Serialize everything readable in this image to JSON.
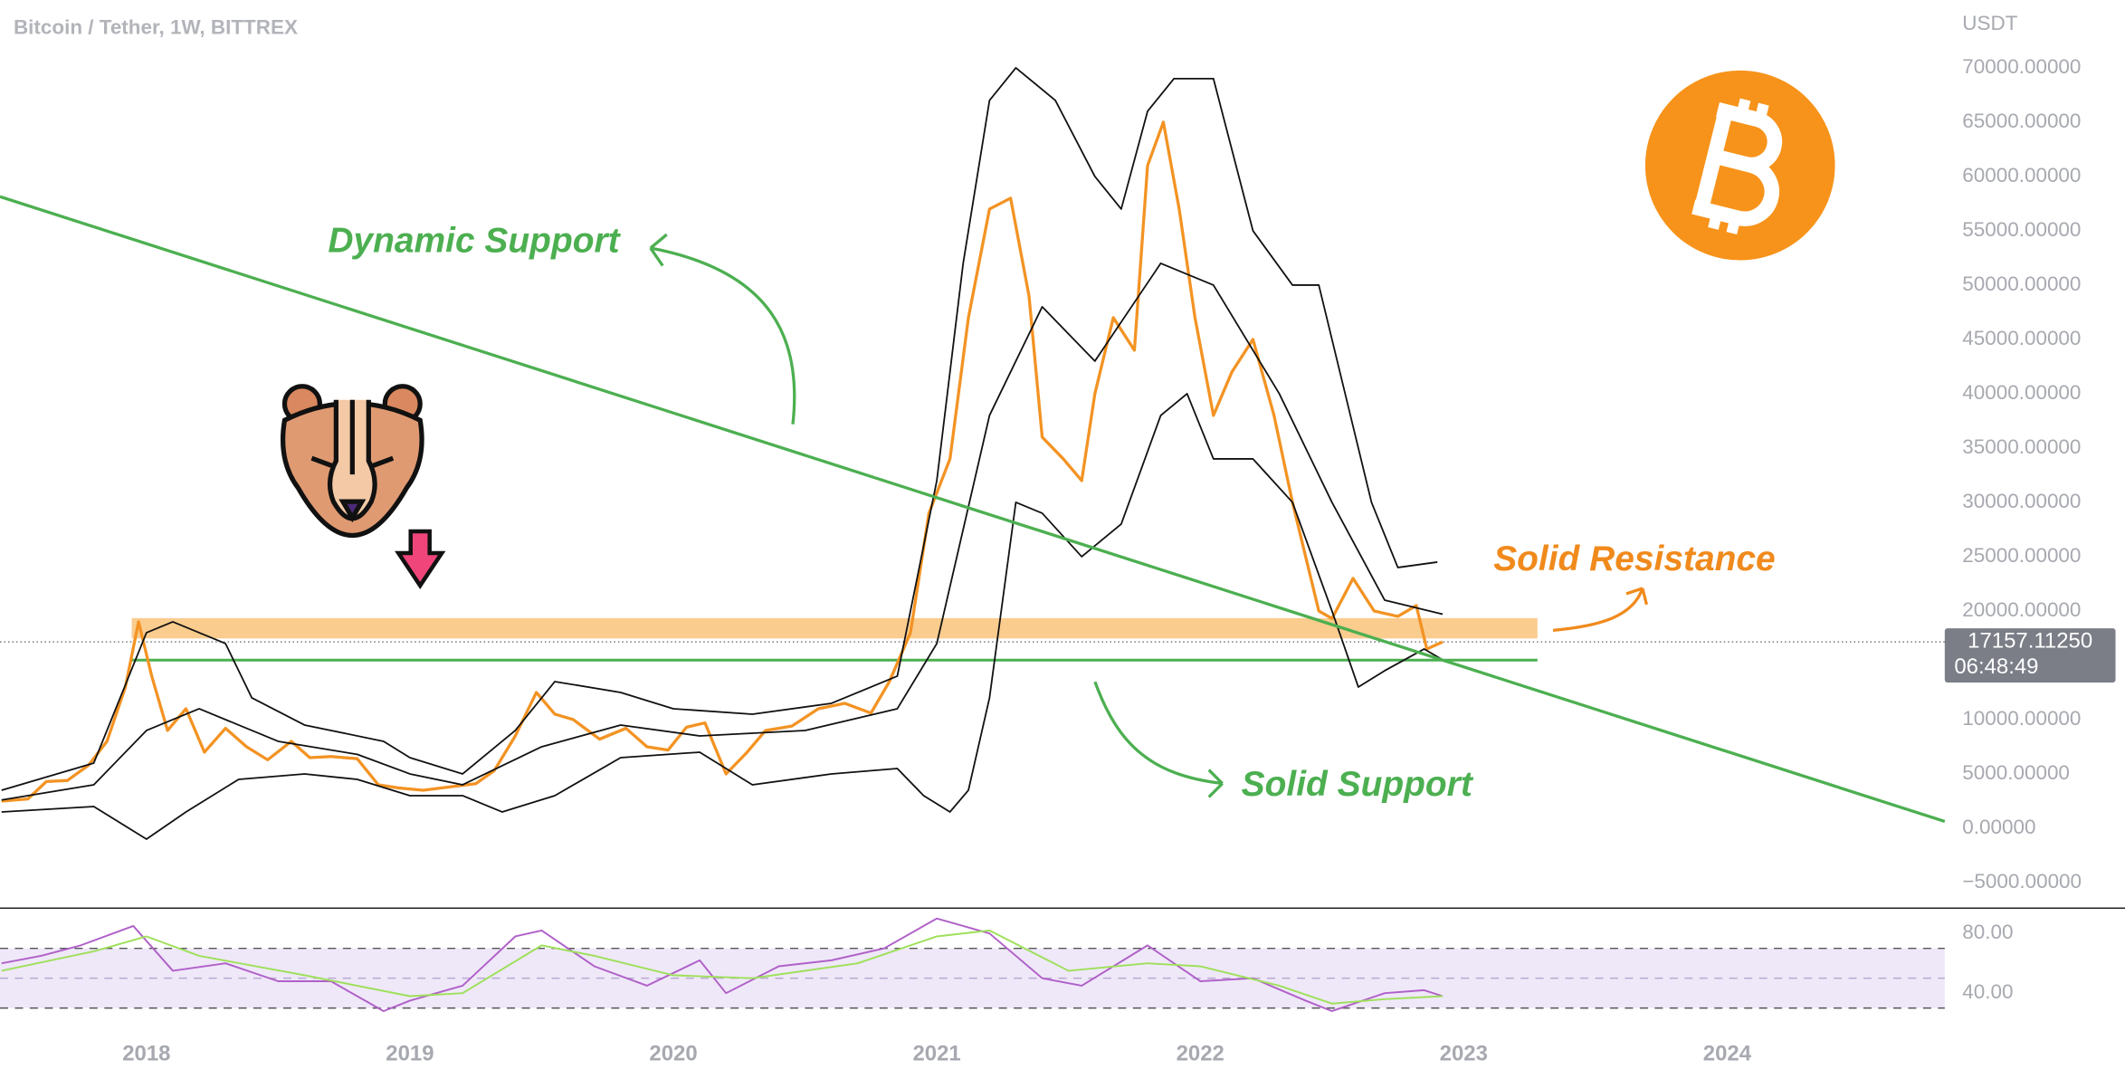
{
  "chart_data": [
    {
      "type": "line",
      "title": "Bitcoin / Tether, 1W, BITTREX",
      "y_axis_label": "USDT",
      "xlim": [
        2017.444,
        2024.826
      ],
      "xticks": [
        2018,
        2019,
        2020,
        2021,
        2022,
        2023,
        2024
      ],
      "ylim": [
        -7360,
        76240
      ],
      "yticks": [
        {
          "value": -5000,
          "label": "−5000.00000"
        },
        {
          "value": 0,
          "label": "0.00000"
        },
        {
          "value": 5000,
          "label": "5000.00000"
        },
        {
          "value": 10000,
          "label": "10000.00000"
        },
        {
          "value": 15000,
          "label": "15000.00000"
        },
        {
          "value": 20000,
          "label": "20000.00000"
        },
        {
          "value": 25000,
          "label": "25000.00000"
        },
        {
          "value": 30000,
          "label": "30000.00000"
        },
        {
          "value": 35000,
          "label": "35000.00000"
        },
        {
          "value": 40000,
          "label": "40000.00000"
        },
        {
          "value": 45000,
          "label": "45000.00000"
        },
        {
          "value": 50000,
          "label": "50000.00000"
        },
        {
          "value": 55000,
          "label": "55000.00000"
        },
        {
          "value": 60000,
          "label": "60000.00000"
        },
        {
          "value": 65000,
          "label": "65000.00000"
        },
        {
          "value": 70000,
          "label": "70000.00000"
        }
      ],
      "series": [
        {
          "color": "#f39323",
          "width": 2.2,
          "x": [
            2017.45,
            2017.55,
            2017.62,
            2017.7,
            2017.78,
            2017.85,
            2017.92,
            2017.97,
            2018.02,
            2018.08,
            2018.15,
            2018.22,
            2018.3,
            2018.38,
            2018.46,
            2018.55,
            2018.62,
            2018.7,
            2018.8,
            2018.88,
            2018.96,
            2019.05,
            2019.15,
            2019.25,
            2019.32,
            2019.4,
            2019.48,
            2019.55,
            2019.62,
            2019.72,
            2019.82,
            2019.9,
            2019.98,
            2020.05,
            2020.12,
            2020.2,
            2020.28,
            2020.35,
            2020.45,
            2020.55,
            2020.65,
            2020.75,
            2020.82,
            2020.9,
            2020.97,
            2021.05,
            2021.12,
            2021.2,
            2021.28,
            2021.35,
            2021.4,
            2021.48,
            2021.55,
            2021.6,
            2021.67,
            2021.75,
            2021.8,
            2021.86,
            2021.92,
            2021.98,
            2022.05,
            2022.12,
            2022.2,
            2022.28,
            2022.35,
            2022.45,
            2022.5,
            2022.58,
            2022.66,
            2022.75,
            2022.82,
            2022.86,
            2022.92
          ],
          "values": [
            2500,
            2700,
            4300,
            4400,
            5800,
            8000,
            13000,
            19000,
            14000,
            9000,
            11000,
            7000,
            9200,
            7500,
            6300,
            8000,
            6500,
            6600,
            6400,
            4000,
            3700,
            3500,
            3800,
            4100,
            5300,
            8500,
            12500,
            10500,
            10000,
            8200,
            9200,
            7500,
            7200,
            9300,
            9700,
            5000,
            7000,
            9000,
            9400,
            11000,
            11500,
            10600,
            13500,
            18000,
            29000,
            34000,
            47000,
            57000,
            58000,
            49000,
            36000,
            34000,
            32000,
            40000,
            47000,
            44000,
            61000,
            65000,
            57000,
            47000,
            38000,
            42000,
            45000,
            38000,
            30000,
            20000,
            19300,
            23000,
            20000,
            19500,
            20500,
            16500,
            17157
          ]
        },
        {
          "color": "#111111",
          "width": 1.2,
          "x": [
            2017.45,
            2017.8,
            2018.0,
            2018.1,
            2018.3,
            2018.4,
            2018.6,
            2018.9,
            2019.0,
            2019.2,
            2019.4,
            2019.55,
            2019.8,
            2020.0,
            2020.3,
            2020.6,
            2020.85,
            2021.0,
            2021.1,
            2021.2,
            2021.3,
            2021.45,
            2021.6,
            2021.7,
            2021.8,
            2021.9,
            2022.05,
            2022.2,
            2022.35,
            2022.45,
            2022.55,
            2022.65,
            2022.75,
            2022.9
          ],
          "values": [
            3500,
            6000,
            18000,
            19000,
            17000,
            12000,
            9500,
            8000,
            6500,
            5000,
            9000,
            13500,
            12500,
            11000,
            10500,
            11500,
            14000,
            32000,
            52000,
            67000,
            70000,
            67000,
            60000,
            57000,
            66000,
            69000,
            69000,
            55000,
            50000,
            50000,
            40000,
            30000,
            24000,
            24500
          ]
        },
        {
          "color": "#111111",
          "width": 1.2,
          "x": [
            2017.45,
            2017.8,
            2018.0,
            2018.2,
            2018.5,
            2018.8,
            2019.0,
            2019.2,
            2019.5,
            2019.8,
            2020.1,
            2020.5,
            2020.85,
            2021.0,
            2021.2,
            2021.4,
            2021.6,
            2021.85,
            2022.05,
            2022.3,
            2022.5,
            2022.7,
            2022.92
          ],
          "values": [
            2600,
            4000,
            9000,
            11000,
            8000,
            6800,
            5000,
            4000,
            7500,
            9500,
            8500,
            9000,
            11000,
            17000,
            38000,
            48000,
            43000,
            52000,
            50000,
            40000,
            30000,
            21000,
            19700
          ]
        },
        {
          "color": "#111111",
          "width": 1.2,
          "x": [
            2017.45,
            2017.8,
            2018.0,
            2018.15,
            2018.35,
            2018.6,
            2018.8,
            2019.0,
            2019.2,
            2019.35,
            2019.55,
            2019.8,
            2020.1,
            2020.3,
            2020.6,
            2020.85,
            2020.95,
            2021.05,
            2021.12,
            2021.2,
            2021.3,
            2021.4,
            2021.55,
            2021.7,
            2021.85,
            2021.95,
            2022.05,
            2022.2,
            2022.35,
            2022.5,
            2022.6,
            2022.7,
            2022.85,
            2022.92
          ],
          "values": [
            1500,
            2000,
            -1000,
            1500,
            4500,
            5000,
            4500,
            3000,
            3000,
            1500,
            3000,
            6500,
            7000,
            4000,
            5000,
            5500,
            3000,
            1500,
            3500,
            12000,
            30000,
            29000,
            25000,
            28000,
            38000,
            40000,
            34000,
            34000,
            30000,
            20000,
            13000,
            14500,
            16500,
            15500
          ]
        }
      ],
      "trendline": {
        "color": "#4caf50",
        "x": [
          2017.444,
          2024.826
        ],
        "values": [
          58140,
          624
        ]
      },
      "resistance_zone": {
        "color": "#f9c37a",
        "x": [
          2017.944,
          2023.28
        ],
        "values": [
          17470,
          19340
        ]
      },
      "support_level": {
        "color": "#4caf50",
        "x": [
          2017.944,
          2023.28
        ],
        "value": 15472
      },
      "last_price": {
        "value": 17157.1125,
        "label": "17157.11250"
      },
      "countdown": "06:48:49",
      "annotations": [
        "Dynamic Support",
        "Solid Resistance",
        "Solid Support"
      ]
    },
    {
      "type": "line",
      "xlim": [
        2017.444,
        2024.826
      ],
      "ylim": [
        13.4,
        96.9
      ],
      "yticks": [
        {
          "value": 80,
          "label": "80.00"
        },
        {
          "value": 40,
          "label": "40.00"
        }
      ],
      "levels": [
        70,
        50,
        30
      ],
      "band": [
        30,
        70
      ],
      "series": [
        {
          "color": "#b060c8",
          "width": 1.3,
          "x": [
            2017.45,
            2017.6,
            2017.75,
            2017.95,
            2018.1,
            2018.3,
            2018.5,
            2018.7,
            2018.9,
            2019.0,
            2019.2,
            2019.4,
            2019.5,
            2019.7,
            2019.9,
            2020.1,
            2020.2,
            2020.4,
            2020.6,
            2020.8,
            2021.0,
            2021.2,
            2021.4,
            2021.55,
            2021.8,
            2022.0,
            2022.2,
            2022.4,
            2022.5,
            2022.7,
            2022.85,
            2022.92
          ],
          "values": [
            60,
            65,
            72,
            85,
            55,
            60,
            48,
            48,
            28,
            35,
            45,
            78,
            82,
            58,
            45,
            62,
            40,
            58,
            62,
            70,
            90,
            80,
            50,
            45,
            72,
            48,
            50,
            35,
            28,
            40,
            42,
            38
          ]
        },
        {
          "color": "#9ee05a",
          "width": 1.3,
          "x": [
            2017.45,
            2017.8,
            2018.0,
            2018.2,
            2018.6,
            2019.0,
            2019.2,
            2019.5,
            2019.7,
            2020.0,
            2020.3,
            2020.7,
            2021.0,
            2021.2,
            2021.5,
            2021.8,
            2022.0,
            2022.3,
            2022.5,
            2022.7,
            2022.92
          ],
          "values": [
            55,
            68,
            78,
            65,
            52,
            38,
            40,
            72,
            65,
            52,
            50,
            60,
            78,
            82,
            55,
            60,
            58,
            45,
            33,
            36,
            38
          ]
        }
      ]
    }
  ]
}
